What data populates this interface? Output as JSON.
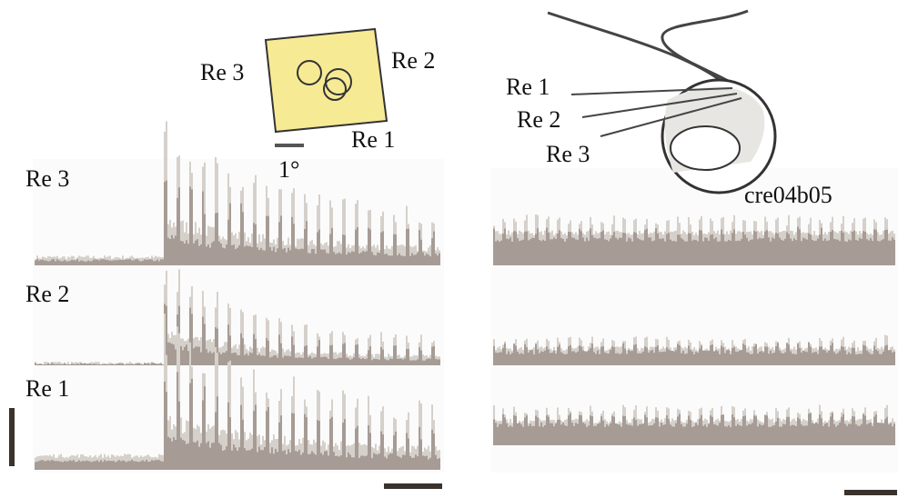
{
  "square_labels": [
    "Re 3",
    "Re 2",
    "Re 1"
  ],
  "scale_label": "1°",
  "eye_labels": [
    "Re 1",
    "Re 2",
    "Re 3"
  ],
  "recording_id": "cre04b05",
  "trace_labels": [
    "Re 3",
    "Re 2",
    "Re 1"
  ]
}
